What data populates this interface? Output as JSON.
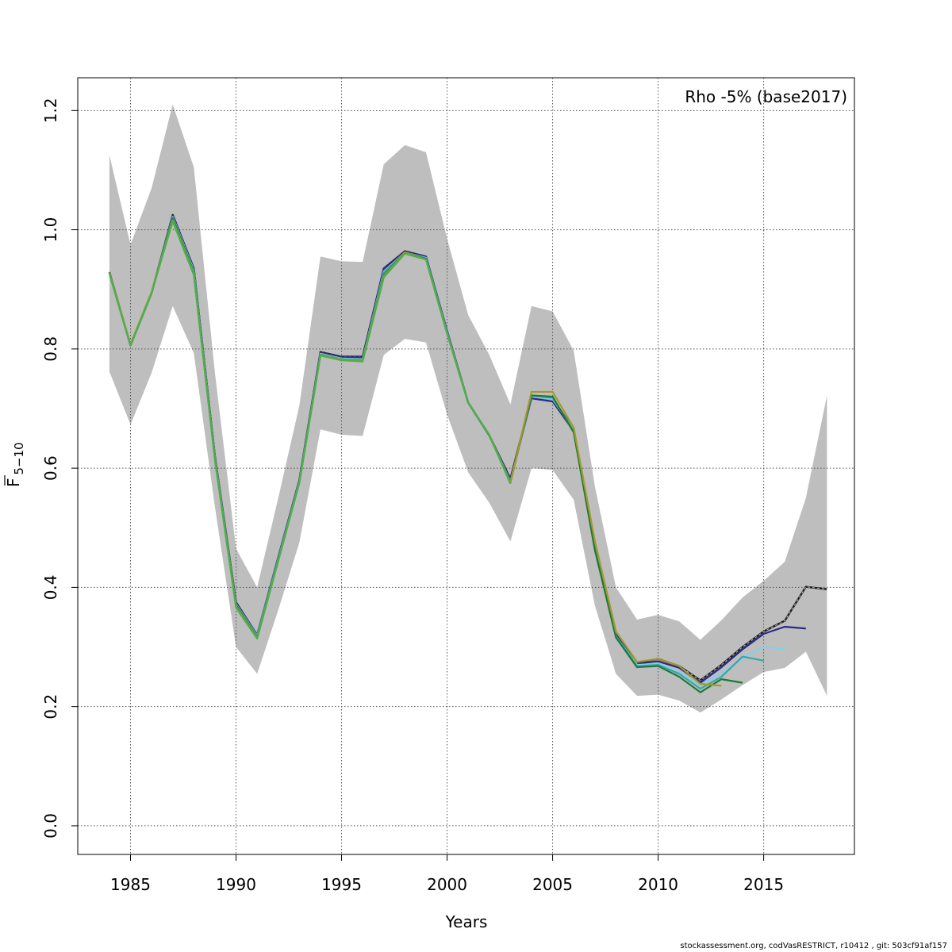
{
  "chart_data": {
    "type": "line",
    "xlabel": "Years",
    "ylabel_main": "F",
    "ylabel_sub": "5−10",
    "annotation": "Rho -5% (base2017)",
    "xlim": [
      1982.5,
      2019.3
    ],
    "ylim": [
      -0.048,
      1.255
    ],
    "xticks": [
      1985,
      1990,
      1995,
      2000,
      2005,
      2010,
      2015
    ],
    "yticks": [
      0.0,
      0.2,
      0.4,
      0.6,
      0.8,
      1.0,
      1.2
    ],
    "ytick_labels": [
      "0.0",
      "0.2",
      "0.4",
      "0.6",
      "0.8",
      "1.0",
      "1.2"
    ],
    "grid": true,
    "band": {
      "color": "#bebebe",
      "x": [
        1984,
        1985,
        1986,
        1987,
        1988,
        1989,
        1990,
        1991,
        1992,
        1993,
        1994,
        1995,
        1996,
        1997,
        1998,
        1999,
        2000,
        2001,
        2002,
        2003,
        2004,
        2005,
        2006,
        2007,
        2008,
        2009,
        2010,
        2011,
        2012,
        2013,
        2014,
        2015,
        2016,
        2017,
        2018
      ],
      "upper": [
        1.125,
        0.975,
        1.07,
        1.21,
        1.105,
        0.76,
        0.465,
        0.4,
        0.55,
        0.705,
        0.955,
        0.947,
        0.946,
        1.11,
        1.142,
        1.13,
        0.985,
        0.857,
        0.79,
        0.707,
        0.872,
        0.863,
        0.797,
        0.57,
        0.4,
        0.346,
        0.354,
        0.343,
        0.312,
        0.345,
        0.383,
        0.411,
        0.443,
        0.55,
        0.722
      ],
      "lower": [
        0.762,
        0.673,
        0.76,
        0.872,
        0.793,
        0.535,
        0.3,
        0.255,
        0.362,
        0.475,
        0.665,
        0.656,
        0.654,
        0.79,
        0.817,
        0.811,
        0.69,
        0.593,
        0.542,
        0.477,
        0.6,
        0.597,
        0.547,
        0.37,
        0.255,
        0.218,
        0.22,
        0.21,
        0.19,
        0.212,
        0.236,
        0.258,
        0.265,
        0.292,
        0.218
      ]
    },
    "series": [
      {
        "color": "#1b1b1b",
        "dashed": true,
        "x": [
          1984,
          1985,
          1986,
          1987,
          1988,
          1989,
          1990,
          1991,
          1992,
          1993,
          1994,
          1995,
          1996,
          1997,
          1998,
          1999,
          2000,
          2001,
          2002,
          2003,
          2004,
          2005,
          2006,
          2007,
          2008,
          2009,
          2010,
          2011,
          2012,
          2013,
          2014,
          2015,
          2016,
          2017,
          2018
        ],
        "values": [
          0.929,
          0.806,
          0.894,
          1.025,
          0.935,
          0.62,
          0.375,
          0.32,
          0.45,
          0.58,
          0.795,
          0.787,
          0.787,
          0.935,
          0.964,
          0.955,
          0.83,
          0.71,
          0.655,
          0.582,
          0.72,
          0.716,
          0.665,
          0.475,
          0.325,
          0.274,
          0.28,
          0.268,
          0.244,
          0.27,
          0.3,
          0.326,
          0.344,
          0.401,
          0.397
        ]
      },
      {
        "color": "#2a2a8c",
        "dashed": false,
        "x": [
          1984,
          1985,
          1986,
          1987,
          1988,
          1989,
          1990,
          1991,
          1992,
          1993,
          1994,
          1995,
          1996,
          1997,
          1998,
          1999,
          2000,
          2001,
          2002,
          2003,
          2004,
          2005,
          2006,
          2007,
          2008,
          2009,
          2010,
          2011,
          2012,
          2013,
          2014,
          2015,
          2016,
          2017
        ],
        "values": [
          0.928,
          0.806,
          0.894,
          1.024,
          0.934,
          0.62,
          0.374,
          0.32,
          0.45,
          0.58,
          0.794,
          0.786,
          0.786,
          0.934,
          0.963,
          0.955,
          0.83,
          0.71,
          0.655,
          0.58,
          0.717,
          0.712,
          0.662,
          0.472,
          0.322,
          0.272,
          0.276,
          0.265,
          0.24,
          0.266,
          0.296,
          0.322,
          0.334,
          0.331
        ]
      },
      {
        "color": "#87ceeb",
        "dashed": false,
        "x": [
          1984,
          1985,
          1986,
          1987,
          1988,
          1989,
          1990,
          1991,
          1992,
          1993,
          1994,
          1995,
          1996,
          1997,
          1998,
          1999,
          2000,
          2001,
          2002,
          2003,
          2004,
          2005,
          2006,
          2007,
          2008,
          2009,
          2010,
          2011,
          2012,
          2013,
          2014,
          2015,
          2016
        ],
        "values": [
          0.927,
          0.806,
          0.894,
          1.022,
          0.932,
          0.618,
          0.372,
          0.319,
          0.448,
          0.578,
          0.792,
          0.784,
          0.783,
          0.93,
          0.962,
          0.953,
          0.828,
          0.71,
          0.655,
          0.578,
          0.72,
          0.716,
          0.664,
          0.468,
          0.318,
          0.27,
          0.272,
          0.258,
          0.236,
          0.256,
          0.28,
          0.3,
          0.297
        ]
      },
      {
        "color": "#3aa6a6",
        "dashed": false,
        "x": [
          1984,
          1985,
          1986,
          1987,
          1988,
          1989,
          1990,
          1991,
          1992,
          1993,
          1994,
          1995,
          1996,
          1997,
          1998,
          1999,
          2000,
          2001,
          2002,
          2003,
          2004,
          2005,
          2006,
          2007,
          2008,
          2009,
          2010,
          2011,
          2012,
          2013,
          2014,
          2015
        ],
        "values": [
          0.927,
          0.806,
          0.894,
          1.021,
          0.93,
          0.617,
          0.371,
          0.318,
          0.447,
          0.577,
          0.791,
          0.783,
          0.782,
          0.928,
          0.962,
          0.952,
          0.827,
          0.71,
          0.655,
          0.577,
          0.722,
          0.718,
          0.662,
          0.466,
          0.318,
          0.268,
          0.27,
          0.255,
          0.23,
          0.25,
          0.284,
          0.277
        ]
      },
      {
        "color": "#1e7a3a",
        "dashed": false,
        "x": [
          1984,
          1985,
          1986,
          1987,
          1988,
          1989,
          1990,
          1991,
          1992,
          1993,
          1994,
          1995,
          1996,
          1997,
          1998,
          1999,
          2000,
          2001,
          2002,
          2003,
          2004,
          2005,
          2006,
          2007,
          2008,
          2009,
          2010,
          2011,
          2012,
          2013,
          2014
        ],
        "values": [
          0.927,
          0.806,
          0.894,
          1.019,
          0.928,
          0.616,
          0.37,
          0.316,
          0.446,
          0.576,
          0.79,
          0.782,
          0.781,
          0.924,
          0.962,
          0.951,
          0.826,
          0.71,
          0.655,
          0.576,
          0.722,
          0.72,
          0.66,
          0.463,
          0.316,
          0.266,
          0.268,
          0.25,
          0.224,
          0.246,
          0.24
        ]
      },
      {
        "color": "#a39a2a",
        "dashed": false,
        "x": [
          1984,
          1985,
          1986,
          1987,
          1988,
          1989,
          1990,
          1991,
          1992,
          1993,
          1994,
          1995,
          1996,
          1997,
          1998,
          1999,
          2000,
          2001,
          2002,
          2003,
          2004,
          2005,
          2006,
          2007,
          2008,
          2009,
          2010,
          2011,
          2012,
          2013
        ],
        "values": [
          0.928,
          0.808,
          0.896,
          1.016,
          0.926,
          0.615,
          0.368,
          0.315,
          0.445,
          0.576,
          0.79,
          0.782,
          0.781,
          0.922,
          0.962,
          0.95,
          0.826,
          0.71,
          0.656,
          0.575,
          0.728,
          0.728,
          0.668,
          0.478,
          0.326,
          0.275,
          0.28,
          0.268,
          0.238,
          0.235
        ]
      },
      {
        "color": "#4cb04c",
        "dashed": false,
        "x": [
          1984,
          1985,
          1986,
          1987,
          1988,
          1989,
          1990,
          1991,
          1992,
          1993,
          1994,
          1995,
          1996,
          1997,
          1998,
          1999,
          2000,
          2001,
          2002,
          2003
        ],
        "values": [
          0.926,
          0.806,
          0.894,
          1.014,
          0.924,
          0.613,
          0.366,
          0.314,
          0.444,
          0.575,
          0.789,
          0.781,
          0.779,
          0.92,
          0.96,
          0.95,
          0.826,
          0.71,
          0.656,
          0.574
        ]
      }
    ]
  },
  "footer": "stockassessment.org, codVasRESTRICT, r10412 , git: 503cf91af157"
}
